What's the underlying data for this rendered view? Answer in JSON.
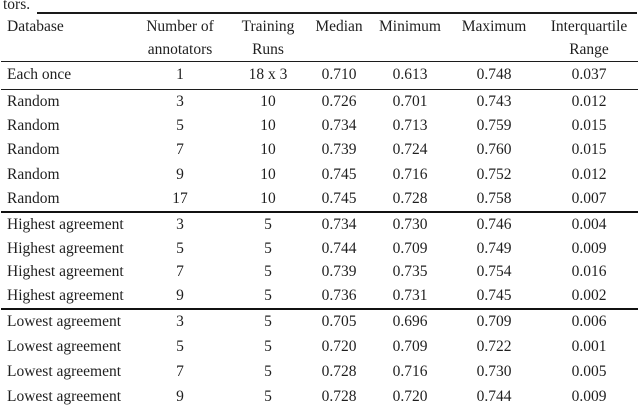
{
  "page": {
    "caption_fragment": "tors."
  },
  "colors": {
    "text": "#1f1f1f",
    "rule": "#1a1a1a",
    "background": "#ffffff"
  },
  "table": {
    "column_names": [
      "Database",
      "Number of annotators",
      "Training Runs",
      "Median",
      "Minimum",
      "Maximum",
      "Interquartile Range"
    ],
    "header": {
      "line1": [
        "Database",
        "Number of",
        "Training",
        "Median",
        "Minimum",
        "Maximum",
        "Interquartile"
      ],
      "line2": [
        "",
        "annotators",
        "Runs",
        "",
        "",
        "",
        "Range"
      ]
    },
    "groups": [
      {
        "name": "each-once",
        "rows": [
          [
            "Each once",
            "1",
            "18 x 3",
            "0.710",
            "0.613",
            "0.748",
            "0.037"
          ]
        ]
      },
      {
        "name": "random",
        "rows": [
          [
            "Random",
            "3",
            "10",
            "0.726",
            "0.701",
            "0.743",
            "0.012"
          ],
          [
            "Random",
            "5",
            "10",
            "0.734",
            "0.713",
            "0.759",
            "0.015"
          ],
          [
            "Random",
            "7",
            "10",
            "0.739",
            "0.724",
            "0.760",
            "0.015"
          ],
          [
            "Random",
            "9",
            "10",
            "0.745",
            "0.716",
            "0.752",
            "0.012"
          ],
          [
            "Random",
            "17",
            "10",
            "0.745",
            "0.728",
            "0.758",
            "0.007"
          ]
        ]
      },
      {
        "name": "highest-agreement",
        "rows": [
          [
            "Highest agreement",
            "3",
            "5",
            "0.734",
            "0.730",
            "0.746",
            "0.004"
          ],
          [
            "Highest agreement",
            "5",
            "5",
            "0.744",
            "0.709",
            "0.749",
            "0.009"
          ],
          [
            "Highest agreement",
            "7",
            "5",
            "0.739",
            "0.735",
            "0.754",
            "0.016"
          ],
          [
            "Highest agreement",
            "9",
            "5",
            "0.736",
            "0.731",
            "0.745",
            "0.002"
          ]
        ]
      },
      {
        "name": "lowest-agreement",
        "rows": [
          [
            "Lowest agreement",
            "3",
            "5",
            "0.705",
            "0.696",
            "0.709",
            "0.006"
          ],
          [
            "Lowest agreement",
            "5",
            "5",
            "0.720",
            "0.709",
            "0.722",
            "0.001"
          ],
          [
            "Lowest agreement",
            "7",
            "5",
            "0.728",
            "0.716",
            "0.730",
            "0.005"
          ],
          [
            "Lowest agreement",
            "9",
            "5",
            "0.728",
            "0.720",
            "0.744",
            "0.009"
          ]
        ]
      }
    ]
  }
}
